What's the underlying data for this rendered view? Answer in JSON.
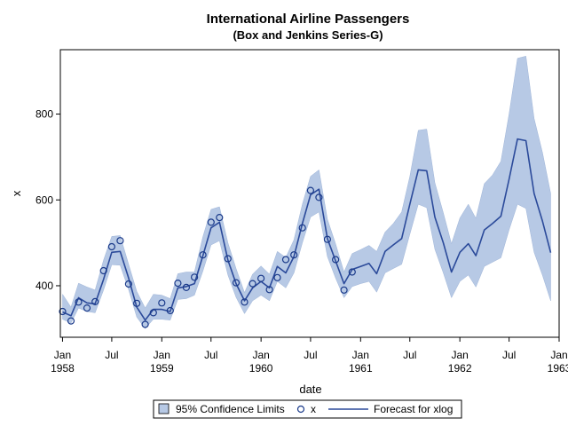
{
  "chart_data": {
    "type": "line",
    "title": "International Airline Passengers",
    "subtitle": "(Box and Jenkins Series-G)",
    "xlabel": "date",
    "ylabel": "x",
    "xlim": [
      "1957-12-24",
      "1963-01-01"
    ],
    "ylim": [
      280,
      950
    ],
    "y_ticks": [
      400,
      600,
      800
    ],
    "x_ticks": [
      {
        "date": "1958-01-01",
        "line1": "Jan",
        "line2": "1958"
      },
      {
        "date": "1958-07-01",
        "line1": "Jul",
        "line2": ""
      },
      {
        "date": "1959-01-01",
        "line1": "Jan",
        "line2": "1959"
      },
      {
        "date": "1959-07-01",
        "line1": "Jul",
        "line2": ""
      },
      {
        "date": "1960-01-01",
        "line1": "Jan",
        "line2": "1960"
      },
      {
        "date": "1960-07-01",
        "line1": "Jul",
        "line2": ""
      },
      {
        "date": "1961-01-01",
        "line1": "Jan",
        "line2": "1961"
      },
      {
        "date": "1961-07-01",
        "line1": "Jul",
        "line2": ""
      },
      {
        "date": "1962-01-01",
        "line1": "Jan",
        "line2": "1962"
      },
      {
        "date": "1962-07-01",
        "line1": "Jul",
        "line2": ""
      },
      {
        "date": "1963-01-01",
        "line1": "Jan",
        "line2": "1963"
      }
    ],
    "dates": [
      "1958-01",
      "1958-02",
      "1958-03",
      "1958-04",
      "1958-05",
      "1958-06",
      "1958-07",
      "1958-08",
      "1958-09",
      "1958-10",
      "1958-11",
      "1958-12",
      "1959-01",
      "1959-02",
      "1959-03",
      "1959-04",
      "1959-05",
      "1959-06",
      "1959-07",
      "1959-08",
      "1959-09",
      "1959-10",
      "1959-11",
      "1959-12",
      "1960-01",
      "1960-02",
      "1960-03",
      "1960-04",
      "1960-05",
      "1960-06",
      "1960-07",
      "1960-08",
      "1960-09",
      "1960-10",
      "1960-11",
      "1960-12",
      "1961-01",
      "1961-02",
      "1961-03",
      "1961-04",
      "1961-05",
      "1961-06",
      "1961-07",
      "1961-08",
      "1961-09",
      "1961-10",
      "1961-11",
      "1961-12",
      "1962-01",
      "1962-02",
      "1962-03",
      "1962-04",
      "1962-05",
      "1962-06",
      "1962-07",
      "1962-08",
      "1962-09",
      "1962-10",
      "1962-11",
      "1962-12"
    ],
    "actual": [
      340,
      318,
      362,
      348,
      363,
      435,
      491,
      505,
      404,
      359,
      310,
      337,
      360,
      342,
      406,
      396,
      420,
      472,
      548,
      559,
      463,
      407,
      362,
      405,
      417,
      391,
      419,
      461,
      472,
      535,
      622,
      606,
      508,
      461,
      390,
      432
    ],
    "forecast": [
      339,
      330,
      372,
      360,
      358,
      415,
      478,
      480,
      418,
      350,
      320,
      345,
      345,
      340,
      395,
      398,
      405,
      470,
      535,
      548,
      460,
      405,
      365,
      395,
      410,
      395,
      445,
      430,
      468,
      545,
      612,
      625,
      510,
      458,
      405,
      438,
      445,
      452,
      428,
      480,
      495,
      510,
      590,
      670,
      668,
      560,
      500,
      432,
      478,
      498,
      470,
      530,
      545,
      562,
      648,
      742,
      738,
      615,
      550,
      477
    ],
    "lower": [
      322,
      313,
      348,
      340,
      337,
      390,
      449,
      448,
      391,
      327,
      300,
      322,
      322,
      320,
      368,
      370,
      378,
      434,
      495,
      505,
      425,
      373,
      335,
      365,
      378,
      365,
      410,
      395,
      430,
      500,
      560,
      572,
      468,
      418,
      372,
      398,
      405,
      410,
      385,
      430,
      440,
      450,
      520,
      590,
      582,
      485,
      430,
      372,
      410,
      425,
      397,
      445,
      455,
      465,
      530,
      590,
      580,
      478,
      424,
      365
    ],
    "upper": [
      380,
      350,
      406,
      397,
      390,
      460,
      515,
      517,
      450,
      387,
      348,
      380,
      378,
      370,
      428,
      432,
      432,
      514,
      578,
      584,
      500,
      440,
      384,
      427,
      446,
      427,
      480,
      466,
      507,
      590,
      655,
      670,
      555,
      498,
      432,
      475,
      484,
      494,
      480,
      525,
      545,
      572,
      655,
      762,
      765,
      640,
      570,
      498,
      558,
      590,
      557,
      638,
      658,
      690,
      800,
      930,
      935,
      790,
      710,
      615
    ],
    "legend": {
      "position": "bottom",
      "entries": [
        "95% Confidence Limits",
        "x",
        "Forecast for xlog"
      ]
    },
    "colors": {
      "band": "#b7c9e5",
      "band_edge": "#9fb5d8",
      "line": "#2b4a9a",
      "marker": "#1a3a8a",
      "frame": "#000000"
    }
  }
}
